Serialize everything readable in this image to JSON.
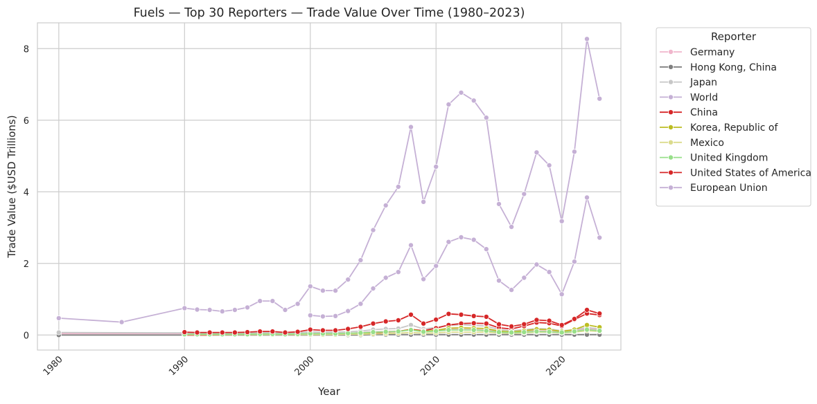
{
  "chart_data": {
    "type": "line",
    "title": "Fuels — Top 30 Reporters — Trade Value Over Time (1980–2023)",
    "xlabel": "Year",
    "ylabel": "Trade Value ($USD Trillions)",
    "xlim": [
      1978.3,
      2024.7
    ],
    "ylim": [
      -0.42,
      8.72
    ],
    "xticks": [
      1980,
      1990,
      2000,
      2010,
      2020
    ],
    "yticks": [
      0,
      2,
      4,
      6,
      8
    ],
    "grid": true,
    "legend": {
      "title": "Reporter",
      "placement": "outside-right"
    },
    "series": [
      {
        "name": "Germany",
        "color": "#f0b6cc",
        "x": [
          1980,
          1990,
          1991,
          1992,
          1993,
          1994,
          1995,
          1996,
          1997,
          1998,
          1999,
          2000,
          2001,
          2002,
          2003,
          2004,
          2005,
          2006,
          2007,
          2008,
          2009,
          2010,
          2011,
          2012,
          2013,
          2014,
          2015,
          2016,
          2017,
          2018,
          2019,
          2020,
          2021,
          2022,
          2023
        ],
        "y": [
          0.04,
          0.04,
          0.04,
          0.04,
          0.03,
          0.03,
          0.03,
          0.04,
          0.04,
          0.03,
          0.03,
          0.05,
          0.05,
          0.05,
          0.05,
          0.07,
          0.09,
          0.1,
          0.11,
          0.15,
          0.1,
          0.12,
          0.16,
          0.16,
          0.15,
          0.14,
          0.09,
          0.08,
          0.1,
          0.12,
          0.11,
          0.08,
          0.12,
          0.18,
          0.14
        ]
      },
      {
        "name": "Hong Kong, China",
        "color": "#7f7f7f",
        "x": [
          1980,
          1990,
          1991,
          1992,
          1993,
          1994,
          1995,
          1996,
          1997,
          1998,
          1999,
          2000,
          2001,
          2002,
          2003,
          2004,
          2005,
          2006,
          2007,
          2008,
          2009,
          2010,
          2011,
          2012,
          2013,
          2014,
          2015,
          2016,
          2017,
          2018,
          2019,
          2020,
          2021,
          2022,
          2023
        ],
        "y": [
          0.0,
          0.0,
          0.0,
          0.0,
          0.0,
          0.0,
          0.0,
          0.0,
          0.0,
          0.0,
          0.0,
          0.0,
          0.0,
          0.0,
          0.0,
          0.0,
          0.01,
          0.01,
          0.01,
          0.01,
          0.01,
          0.01,
          0.01,
          0.01,
          0.01,
          0.01,
          0.01,
          0.01,
          0.01,
          0.01,
          0.01,
          0.01,
          0.01,
          0.01,
          0.01
        ]
      },
      {
        "name": "Japan",
        "color": "#c7c7c7",
        "x": [
          1980,
          1990,
          1991,
          1992,
          1993,
          1994,
          1995,
          1996,
          1997,
          1998,
          1999,
          2000,
          2001,
          2002,
          2003,
          2004,
          2005,
          2006,
          2007,
          2008,
          2009,
          2010,
          2011,
          2012,
          2013,
          2014,
          2015,
          2016,
          2017,
          2018,
          2019,
          2020,
          2021,
          2022,
          2023
        ],
        "y": [
          0.07,
          0.06,
          0.06,
          0.05,
          0.05,
          0.05,
          0.06,
          0.07,
          0.07,
          0.05,
          0.06,
          0.09,
          0.08,
          0.08,
          0.09,
          0.11,
          0.15,
          0.17,
          0.18,
          0.28,
          0.17,
          0.21,
          0.27,
          0.29,
          0.27,
          0.25,
          0.15,
          0.12,
          0.15,
          0.18,
          0.17,
          0.12,
          0.15,
          0.21,
          0.17
        ]
      },
      {
        "name": "World",
        "color": "#c5b0d5",
        "x": [
          1980,
          1985,
          1990,
          1991,
          1992,
          1993,
          1994,
          1995,
          1996,
          1997,
          1998,
          1999,
          2000,
          2001,
          2002,
          2003,
          2004,
          2005,
          2006,
          2007,
          2008,
          2009,
          2010,
          2011,
          2012,
          2013,
          2014,
          2015,
          2016,
          2017,
          2018,
          2019,
          2020,
          2021,
          2022,
          2023
        ],
        "y": [
          0.47,
          0.36,
          0.75,
          0.71,
          0.7,
          0.66,
          0.7,
          0.77,
          0.95,
          0.95,
          0.7,
          0.87,
          1.36,
          1.24,
          1.24,
          1.55,
          2.09,
          2.93,
          3.62,
          4.14,
          5.81,
          3.72,
          4.7,
          6.44,
          6.77,
          6.55,
          6.07,
          3.66,
          3.02,
          3.94,
          5.1,
          4.74,
          3.18,
          5.12,
          8.27,
          6.6
        ]
      },
      {
        "name": "China",
        "color": "#d62728",
        "x": [
          1990,
          1991,
          1992,
          1993,
          1994,
          1995,
          1996,
          1997,
          1998,
          1999,
          2000,
          2001,
          2002,
          2003,
          2004,
          2005,
          2006,
          2007,
          2008,
          2009,
          2010,
          2011,
          2012,
          2013,
          2014,
          2015,
          2016,
          2017,
          2018,
          2019,
          2020,
          2021,
          2022,
          2023
        ],
        "y": [
          0.0,
          0.0,
          0.0,
          0.01,
          0.01,
          0.01,
          0.01,
          0.02,
          0.01,
          0.01,
          0.02,
          0.02,
          0.02,
          0.03,
          0.05,
          0.06,
          0.08,
          0.1,
          0.16,
          0.12,
          0.19,
          0.28,
          0.32,
          0.33,
          0.32,
          0.2,
          0.17,
          0.25,
          0.35,
          0.33,
          0.25,
          0.43,
          0.6,
          0.56
        ]
      },
      {
        "name": "Korea, Republic of",
        "color": "#bcbd22",
        "x": [
          1990,
          1991,
          1992,
          1993,
          1994,
          1995,
          1996,
          1997,
          1998,
          1999,
          2000,
          2001,
          2002,
          2003,
          2004,
          2005,
          2006,
          2007,
          2008,
          2009,
          2010,
          2011,
          2012,
          2013,
          2014,
          2015,
          2016,
          2017,
          2018,
          2019,
          2020,
          2021,
          2022,
          2023
        ],
        "y": [
          0.01,
          0.01,
          0.01,
          0.01,
          0.01,
          0.02,
          0.02,
          0.02,
          0.02,
          0.02,
          0.03,
          0.03,
          0.03,
          0.04,
          0.05,
          0.07,
          0.09,
          0.1,
          0.15,
          0.1,
          0.13,
          0.19,
          0.2,
          0.19,
          0.18,
          0.11,
          0.09,
          0.12,
          0.16,
          0.15,
          0.1,
          0.15,
          0.28,
          0.22
        ]
      },
      {
        "name": "Mexico",
        "color": "#dbdb8d",
        "x": [
          1990,
          1991,
          1992,
          1993,
          1994,
          1995,
          1996,
          1997,
          1998,
          1999,
          2000,
          2001,
          2002,
          2003,
          2004,
          2005,
          2006,
          2007,
          2008,
          2009,
          2010,
          2011,
          2012,
          2013,
          2014,
          2015,
          2016,
          2017,
          2018,
          2019,
          2020,
          2021,
          2022,
          2023
        ],
        "y": [
          0.01,
          0.01,
          0.01,
          0.01,
          0.01,
          0.01,
          0.01,
          0.01,
          0.01,
          0.01,
          0.01,
          0.01,
          0.01,
          0.02,
          0.02,
          0.03,
          0.04,
          0.05,
          0.07,
          0.05,
          0.06,
          0.08,
          0.08,
          0.08,
          0.08,
          0.06,
          0.05,
          0.06,
          0.08,
          0.08,
          0.06,
          0.08,
          0.12,
          0.1
        ]
      },
      {
        "name": "United Kingdom",
        "color": "#98df8a",
        "x": [
          1990,
          1991,
          1992,
          1993,
          1994,
          1995,
          1996,
          1997,
          1998,
          1999,
          2000,
          2001,
          2002,
          2003,
          2004,
          2005,
          2006,
          2007,
          2008,
          2009,
          2010,
          2011,
          2012,
          2013,
          2014,
          2015,
          2016,
          2017,
          2018,
          2019,
          2020,
          2021,
          2022,
          2023
        ],
        "y": [
          0.02,
          0.02,
          0.02,
          0.02,
          0.02,
          0.02,
          0.03,
          0.03,
          0.02,
          0.03,
          0.04,
          0.04,
          0.04,
          0.05,
          0.06,
          0.08,
          0.09,
          0.1,
          0.14,
          0.09,
          0.11,
          0.14,
          0.14,
          0.14,
          0.12,
          0.08,
          0.07,
          0.08,
          0.1,
          0.09,
          0.07,
          0.1,
          0.15,
          0.12
        ]
      },
      {
        "name": "United States of America",
        "color": "#d62728",
        "x": [
          1990,
          1991,
          1992,
          1993,
          1994,
          1995,
          1996,
          1997,
          1998,
          1999,
          2000,
          2001,
          2002,
          2003,
          2004,
          2005,
          2006,
          2007,
          2008,
          2009,
          2010,
          2011,
          2012,
          2013,
          2014,
          2015,
          2016,
          2017,
          2018,
          2019,
          2020,
          2021,
          2022,
          2023
        ],
        "y": [
          0.08,
          0.07,
          0.07,
          0.07,
          0.07,
          0.08,
          0.1,
          0.1,
          0.07,
          0.09,
          0.15,
          0.13,
          0.13,
          0.17,
          0.23,
          0.32,
          0.38,
          0.41,
          0.57,
          0.32,
          0.43,
          0.59,
          0.57,
          0.53,
          0.51,
          0.3,
          0.24,
          0.3,
          0.42,
          0.4,
          0.28,
          0.45,
          0.7,
          0.6
        ]
      },
      {
        "name": "European Union",
        "color": "#c5b0d5",
        "x": [
          2000,
          2001,
          2002,
          2003,
          2004,
          2005,
          2006,
          2007,
          2008,
          2009,
          2010,
          2011,
          2012,
          2013,
          2014,
          2015,
          2016,
          2017,
          2018,
          2019,
          2020,
          2021,
          2022,
          2023
        ],
        "y": [
          0.55,
          0.52,
          0.53,
          0.67,
          0.87,
          1.3,
          1.6,
          1.76,
          2.51,
          1.56,
          1.93,
          2.6,
          2.73,
          2.66,
          2.4,
          1.52,
          1.26,
          1.6,
          1.97,
          1.76,
          1.14,
          2.05,
          3.84,
          2.72
        ]
      }
    ]
  }
}
